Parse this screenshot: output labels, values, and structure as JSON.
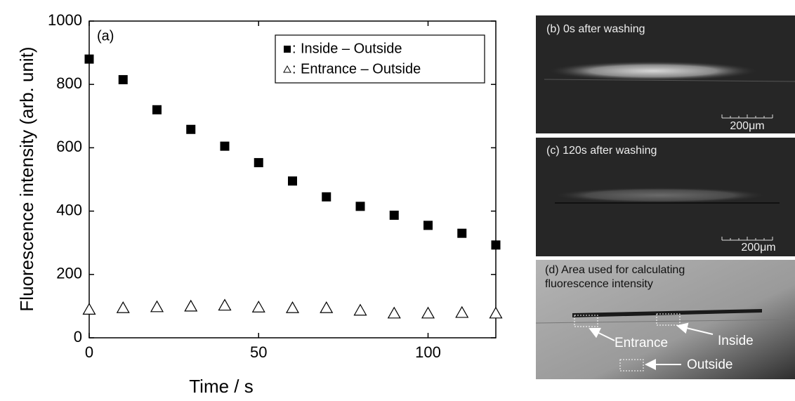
{
  "chart_data": {
    "type": "scatter",
    "panel_label": "(a)",
    "x_label": "Time / s",
    "y_label": "Fluorescence intensity (arb. unit)",
    "x": [
      0,
      10,
      20,
      30,
      40,
      50,
      60,
      70,
      80,
      90,
      100,
      110,
      120
    ],
    "legend_separator": ":",
    "series": [
      {
        "name": "Inside – Outside",
        "color": "#000000",
        "marker": "square",
        "values": [
          880,
          815,
          720,
          658,
          605,
          553,
          495,
          445,
          415,
          387,
          355,
          330,
          293
        ]
      },
      {
        "name": "Entrance – Outside",
        "color": "#000000",
        "marker": "open-triangle",
        "values": [
          90,
          95,
          98,
          100,
          103,
          97,
          95,
          95,
          87,
          78,
          78,
          80,
          78
        ]
      }
    ],
    "xlim": [
      0,
      120
    ],
    "xticks": [
      0,
      50,
      100
    ],
    "ylim": [
      0,
      1000
    ],
    "yticks": [
      0,
      200,
      400,
      600,
      800,
      1000
    ],
    "grid": false,
    "legend": "upper right"
  },
  "panels": [
    {
      "label": "(b) 0s after washing",
      "scale_bar": "200μm"
    },
    {
      "label": "(c) 120s after washing",
      "scale_bar": "200μm"
    },
    {
      "label_lines": [
        "(d) Area used for calculating",
        "fluorescence intensity"
      ],
      "regions": [
        "Entrance",
        "Inside",
        "Outside"
      ]
    }
  ]
}
